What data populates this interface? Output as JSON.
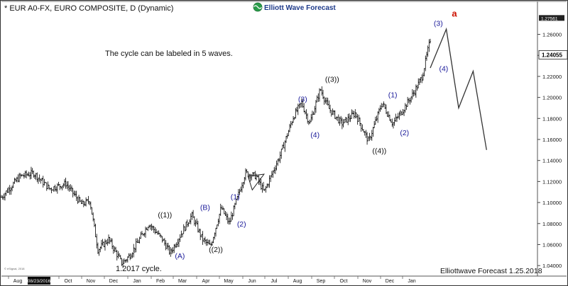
{
  "header": {
    "title": "* EUR A0-FX, EURO COMPOSITE, D (Dynamic)",
    "brand": "Elliott Wave Forecast",
    "brand_icon": "elliott-wave-globe-icon"
  },
  "annotation": "The cycle can be labeled in 5 waves.",
  "cycle_note": "1.2017 cycle.",
  "footer": {
    "credit": "Elliottwave Forecast  1.25.2018",
    "watermark": "© eSignal, 2018"
  },
  "colors": {
    "wave_blue": "#1a1a9a",
    "wave_red": "#cc1100",
    "candle": "#000000",
    "axis_highlight": "#0a0a0a"
  },
  "chart_data": {
    "type": "candlestick",
    "title": "* EUR A0-FX, EURO COMPOSITE, D (Dynamic)",
    "x_ticks": [
      "Aug",
      "08/23/2016",
      "Oct",
      "Nov",
      "Dec",
      "Jan",
      "Feb",
      "Mar",
      "Apr",
      "May",
      "Jun",
      "Jul",
      "Aug",
      "Sep",
      "Oct",
      "Nov",
      "Dec",
      "Jan"
    ],
    "highlight_x_tick": "08/23/2016",
    "y_ticks": [
      "1.26000",
      "1.24000",
      "1.22000",
      "1.20000",
      "1.18000",
      "1.16000",
      "1.14000",
      "1.12000",
      "1.10000",
      "1.08000",
      "1.06000",
      "1.04000"
    ],
    "ylim": [
      1.03,
      1.29
    ],
    "last_price": "1.24055",
    "prev_price": "1.27561",
    "price_path": [
      {
        "t": 0.0,
        "p": 1.105
      },
      {
        "t": 0.035,
        "p": 1.125
      },
      {
        "t": 0.06,
        "p": 1.128
      },
      {
        "t": 0.09,
        "p": 1.113
      },
      {
        "t": 0.12,
        "p": 1.118
      },
      {
        "t": 0.15,
        "p": 1.098
      },
      {
        "t": 0.165,
        "p": 1.102
      },
      {
        "t": 0.18,
        "p": 1.055
      },
      {
        "t": 0.2,
        "p": 1.065
      },
      {
        "t": 0.225,
        "p": 1.042
      },
      {
        "t": 0.24,
        "p": 1.05
      },
      {
        "t": 0.275,
        "p": 1.08
      },
      {
        "t": 0.3,
        "p": 1.065
      },
      {
        "t": 0.315,
        "p": 1.052
      },
      {
        "t": 0.355,
        "p": 1.088
      },
      {
        "t": 0.375,
        "p": 1.065
      },
      {
        "t": 0.39,
        "p": 1.058
      },
      {
        "t": 0.41,
        "p": 1.095
      },
      {
        "t": 0.425,
        "p": 1.08
      },
      {
        "t": 0.455,
        "p": 1.128
      },
      {
        "t": 0.475,
        "p": 1.125
      },
      {
        "t": 0.49,
        "p": 1.11
      },
      {
        "t": 0.52,
        "p": 1.145
      },
      {
        "t": 0.545,
        "p": 1.182
      },
      {
        "t": 0.56,
        "p": 1.195
      },
      {
        "t": 0.575,
        "p": 1.175
      },
      {
        "t": 0.595,
        "p": 1.208
      },
      {
        "t": 0.61,
        "p": 1.19
      },
      {
        "t": 0.635,
        "p": 1.175
      },
      {
        "t": 0.66,
        "p": 1.185
      },
      {
        "t": 0.685,
        "p": 1.158
      },
      {
        "t": 0.71,
        "p": 1.195
      },
      {
        "t": 0.73,
        "p": 1.175
      },
      {
        "t": 0.745,
        "p": 1.185
      },
      {
        "t": 0.77,
        "p": 1.205
      },
      {
        "t": 0.785,
        "p": 1.22
      },
      {
        "t": 0.8,
        "p": 1.255
      }
    ],
    "projection": [
      {
        "t": 0.8,
        "p": 1.228
      },
      {
        "t": 0.83,
        "p": 1.265
      },
      {
        "t": 0.853,
        "p": 1.19
      },
      {
        "t": 0.88,
        "p": 1.225
      },
      {
        "t": 0.905,
        "p": 1.15
      }
    ],
    "triangle": [
      {
        "t": 0.46,
        "p": 1.125
      },
      {
        "t": 0.49,
        "p": 1.127
      },
      {
        "t": 0.468,
        "p": 1.112
      }
    ],
    "wave_labels": [
      {
        "text": "((1))",
        "t": 0.305,
        "p": 1.086,
        "color": "black"
      },
      {
        "text": "(A)",
        "t": 0.333,
        "p": 1.047,
        "color": "blue"
      },
      {
        "text": "(B)",
        "t": 0.38,
        "p": 1.093,
        "color": "blue"
      },
      {
        "text": "((2))",
        "t": 0.4,
        "p": 1.053,
        "color": "black"
      },
      {
        "text": "(1)",
        "t": 0.436,
        "p": 1.103,
        "color": "blue"
      },
      {
        "text": "(2)",
        "t": 0.448,
        "p": 1.077,
        "color": "blue"
      },
      {
        "text": "(3)",
        "t": 0.562,
        "p": 1.196,
        "color": "blue"
      },
      {
        "text": "(4)",
        "t": 0.585,
        "p": 1.162,
        "color": "blue"
      },
      {
        "text": "((3))",
        "t": 0.617,
        "p": 1.215,
        "color": "black"
      },
      {
        "text": "((4))",
        "t": 0.705,
        "p": 1.147,
        "color": "black"
      },
      {
        "text": "(1)",
        "t": 0.73,
        "p": 1.2,
        "color": "blue"
      },
      {
        "text": "(2)",
        "t": 0.752,
        "p": 1.164,
        "color": "blue"
      },
      {
        "text": "(3)",
        "t": 0.815,
        "p": 1.268,
        "color": "blue"
      },
      {
        "text": "(4)",
        "t": 0.825,
        "p": 1.225,
        "color": "blue"
      },
      {
        "text": "a",
        "t": 0.845,
        "p": 1.277,
        "color": "red"
      }
    ]
  }
}
